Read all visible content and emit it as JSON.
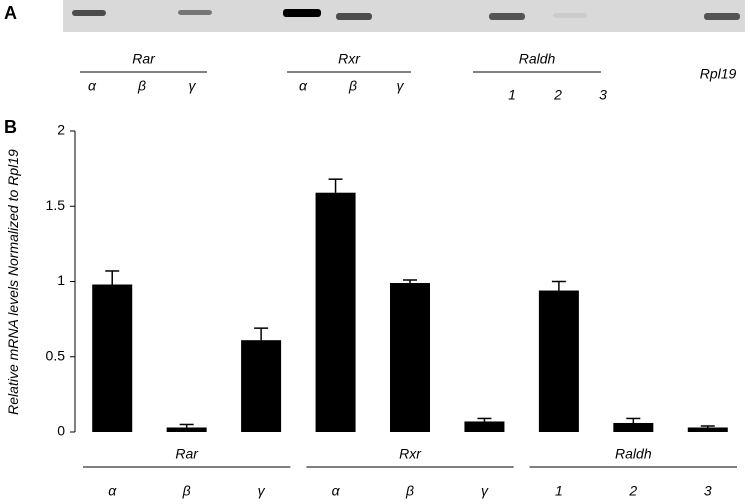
{
  "panel_a": {
    "label": "A",
    "groups": [
      {
        "name": "Rar",
        "lanes": [
          "α",
          "β",
          "γ"
        ]
      },
      {
        "name": "Rxr",
        "lanes": [
          "α",
          "β",
          "γ"
        ]
      },
      {
        "name": "Raldh",
        "lanes": [
          "1",
          "2",
          "3"
        ]
      }
    ],
    "control": "Rpl19"
  },
  "chart_data": {
    "type": "bar",
    "panel_label": "B",
    "ylabel": "Relative mRNA levels Normalized to",
    "ylabel_gene": "Rpl19",
    "color": "#000000",
    "groups": [
      {
        "name": "Rar",
        "categories": [
          "α",
          "β",
          "γ"
        ],
        "values": [
          0.98,
          0.03,
          0.61
        ],
        "errors": [
          0.09,
          0.02,
          0.08
        ]
      },
      {
        "name": "Rxr",
        "categories": [
          "α",
          "β",
          "γ"
        ],
        "values": [
          1.59,
          0.99,
          0.07
        ],
        "errors": [
          0.09,
          0.02,
          0.02
        ]
      },
      {
        "name": "Raldh",
        "categories": [
          "1",
          "2",
          "3"
        ],
        "values": [
          0.94,
          0.06,
          0.03
        ],
        "errors": [
          0.06,
          0.03,
          0.01
        ]
      }
    ],
    "ylim": [
      0,
      2
    ],
    "yticks": [
      0,
      0.5,
      1,
      1.5,
      2
    ]
  }
}
